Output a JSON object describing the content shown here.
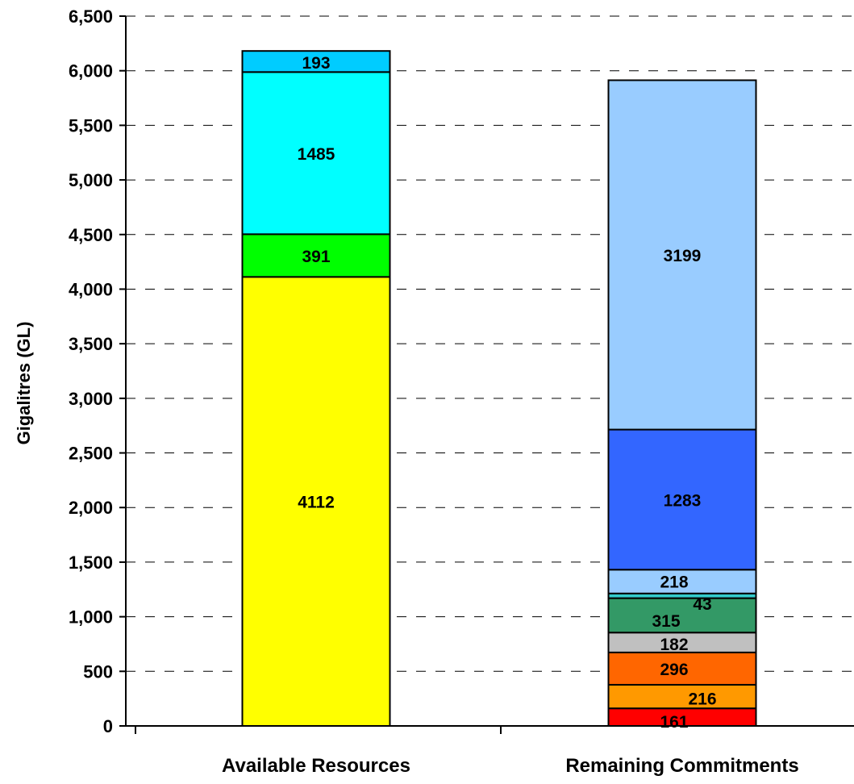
{
  "chart_data": {
    "type": "bar",
    "stacked": true,
    "ylabel": "Gigalitres (GL)",
    "ylim": [
      0,
      6500
    ],
    "yticks": [
      0,
      500,
      1000,
      1500,
      2000,
      2500,
      3000,
      3500,
      4000,
      4500,
      5000,
      5500,
      6000,
      6500
    ],
    "ytick_labels": [
      "0",
      "500",
      "1,000",
      "1,500",
      "2,000",
      "2,500",
      "3,000",
      "3,500",
      "4,000",
      "4,500",
      "5,000",
      "5,500",
      "6,000",
      "6,500"
    ],
    "grid": true,
    "legend": "none",
    "categories": [
      "Available Resources",
      "Remaining Commitments"
    ],
    "stacks": [
      {
        "category": "Available Resources",
        "segments": [
          {
            "value": 4112,
            "label": "4112",
            "color": "#ffff00"
          },
          {
            "value": 391,
            "label": "391",
            "color": "#00ff00"
          },
          {
            "value": 1485,
            "label": "1485",
            "color": "#00ffff"
          },
          {
            "value": 193,
            "label": "193",
            "color": "#00ccff"
          }
        ]
      },
      {
        "category": "Remaining Commitments",
        "segments": [
          {
            "value": 161,
            "label": "161",
            "color": "#ff0000"
          },
          {
            "value": 216,
            "label": "216",
            "color": "#ff9900"
          },
          {
            "value": 296,
            "label": "296",
            "color": "#ff6600"
          },
          {
            "value": 182,
            "label": "182",
            "color": "#c0c0c0"
          },
          {
            "value": 315,
            "label": "315",
            "color": "#339966"
          },
          {
            "value": 43,
            "label": "43",
            "color": "#33cccc"
          },
          {
            "value": 218,
            "label": "218",
            "color": "#99ccff"
          },
          {
            "value": 1283,
            "label": "1283",
            "color": "#3366ff"
          },
          {
            "value": 3199,
            "label": "3199",
            "color": "#99ccff"
          }
        ]
      }
    ]
  }
}
